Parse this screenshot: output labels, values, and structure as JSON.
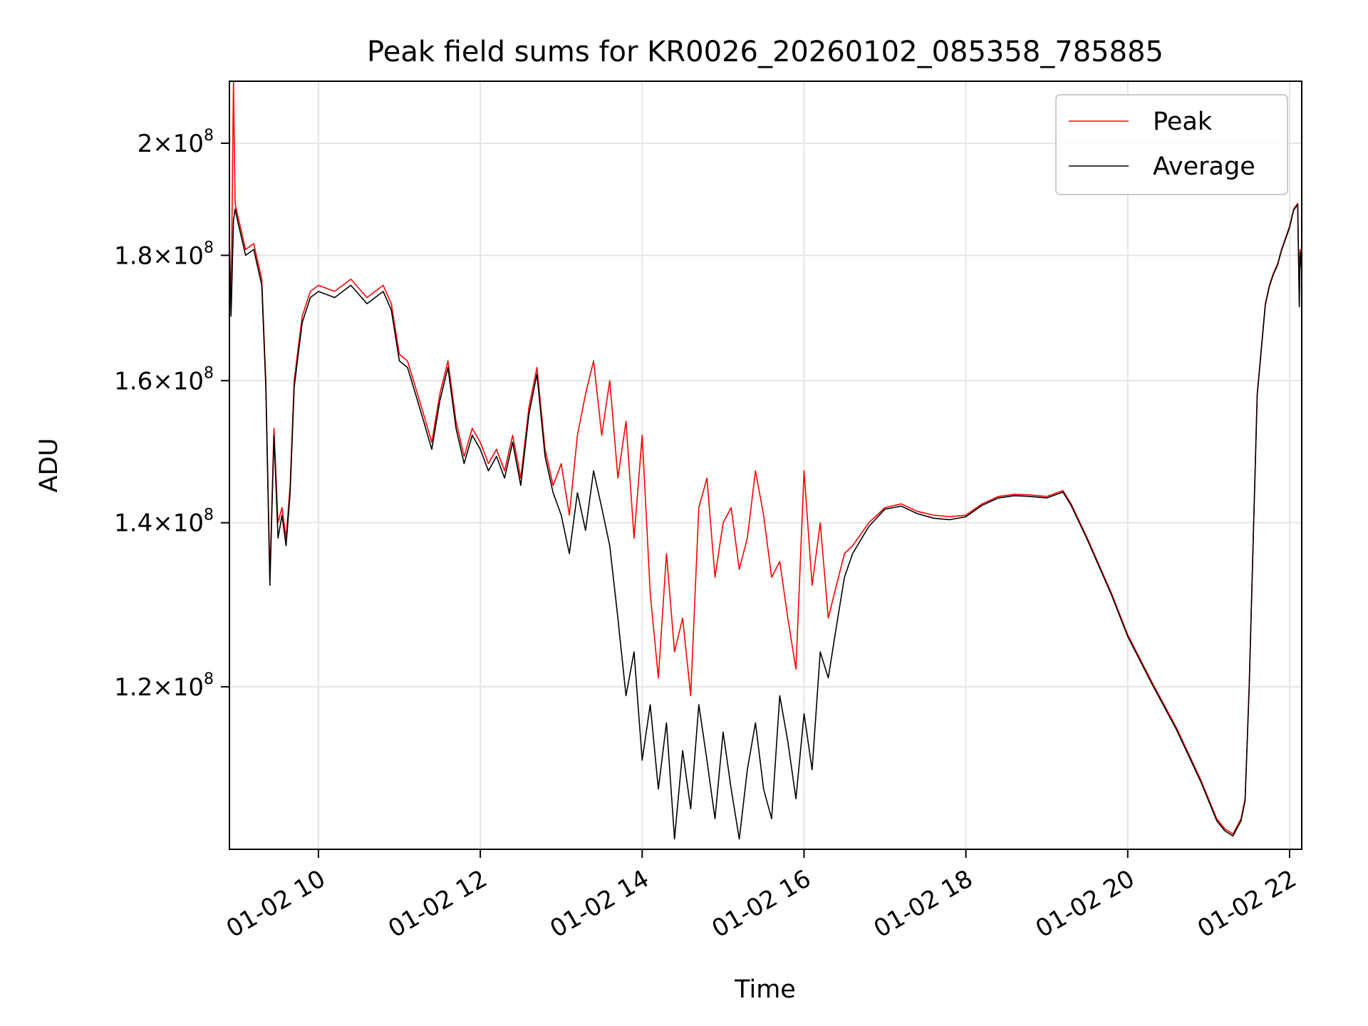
{
  "chart_data": {
    "type": "line",
    "title": "Peak field sums for KR0026_20260102_085358_785885",
    "xlabel": "Time",
    "ylabel": "ADU",
    "yscale": "log",
    "xlim": [
      8.9,
      22.15
    ],
    "ylim": [
      103000000,
      212000000
    ],
    "grid": true,
    "legend_position": "upper right",
    "x_ticks": [
      {
        "value": 10,
        "label": "01-02 10"
      },
      {
        "value": 12,
        "label": "01-02 12"
      },
      {
        "value": 14,
        "label": "01-02 14"
      },
      {
        "value": 16,
        "label": "01-02 16"
      },
      {
        "value": 18,
        "label": "01-02 18"
      },
      {
        "value": 20,
        "label": "01-02 20"
      },
      {
        "value": 22,
        "label": "01-02 22"
      }
    ],
    "y_ticks": [
      {
        "value": 120000000,
        "mant": "1.2",
        "exp": "8"
      },
      {
        "value": 140000000,
        "mant": "1.4",
        "exp": "8"
      },
      {
        "value": 160000000,
        "mant": "1.6",
        "exp": "8"
      },
      {
        "value": 180000000,
        "mant": "1.8",
        "exp": "8"
      },
      {
        "value": 200000000,
        "mant": "2",
        "exp": "8"
      }
    ],
    "series": [
      {
        "name": "Peak",
        "color": "#ff0000",
        "x": [
          8.9,
          8.92,
          8.95,
          8.97,
          9.0,
          9.05,
          9.1,
          9.2,
          9.3,
          9.35,
          9.4,
          9.45,
          9.5,
          9.55,
          9.6,
          9.65,
          9.7,
          9.75,
          9.8,
          9.9,
          10.0,
          10.2,
          10.4,
          10.6,
          10.8,
          10.9,
          11.0,
          11.1,
          11.2,
          11.3,
          11.4,
          11.5,
          11.6,
          11.7,
          11.8,
          11.9,
          12.0,
          12.1,
          12.2,
          12.3,
          12.4,
          12.5,
          12.6,
          12.7,
          12.8,
          12.9,
          13.0,
          13.1,
          13.2,
          13.3,
          13.4,
          13.5,
          13.6,
          13.7,
          13.8,
          13.9,
          14.0,
          14.1,
          14.2,
          14.3,
          14.4,
          14.5,
          14.6,
          14.7,
          14.8,
          14.9,
          15.0,
          15.1,
          15.2,
          15.3,
          15.4,
          15.5,
          15.6,
          15.7,
          15.8,
          15.9,
          16.0,
          16.1,
          16.2,
          16.3,
          16.4,
          16.5,
          16.6,
          16.8,
          17.0,
          17.2,
          17.4,
          17.6,
          17.8,
          18.0,
          18.2,
          18.4,
          18.6,
          18.8,
          19.0,
          19.2,
          19.3,
          19.5,
          19.8,
          20.0,
          20.3,
          20.6,
          20.9,
          21.1,
          21.2,
          21.3,
          21.4,
          21.45,
          21.5,
          21.6,
          21.7,
          21.75,
          21.8,
          21.85,
          21.9,
          22.0,
          22.05,
          22.1,
          22.12,
          22.13,
          22.15
        ],
        "y": [
          183000000,
          171000000,
          212000000,
          189000000,
          187000000,
          184000000,
          181000000,
          182000000,
          176000000,
          160000000,
          133000000,
          153000000,
          140000000,
          142000000,
          138000000,
          145000000,
          160000000,
          165000000,
          170000000,
          174000000,
          175000000,
          174000000,
          176000000,
          173000000,
          175000000,
          172000000,
          164000000,
          163000000,
          159000000,
          155000000,
          151000000,
          158000000,
          163000000,
          154000000,
          149000000,
          153000000,
          151000000,
          148000000,
          150000000,
          147000000,
          152000000,
          146000000,
          156000000,
          162000000,
          150000000,
          145000000,
          148000000,
          141000000,
          152000000,
          158000000,
          163000000,
          152000000,
          160000000,
          146000000,
          154000000,
          138000000,
          152000000,
          131000000,
          121000000,
          136000000,
          124000000,
          128000000,
          119000000,
          142000000,
          146000000,
          133000000,
          140000000,
          142000000,
          134000000,
          138000000,
          147000000,
          141000000,
          133000000,
          135000000,
          128000000,
          122000000,
          147000000,
          132000000,
          140000000,
          128000000,
          132000000,
          136000000,
          137000000,
          140000000,
          142000000,
          142500000,
          141500000,
          141000000,
          140800000,
          141000000,
          142500000,
          143500000,
          143800000,
          143700000,
          143500000,
          144300000,
          142500000,
          138000000,
          131000000,
          126000000,
          120500000,
          115500000,
          110000000,
          106000000,
          105000000,
          104500000,
          106000000,
          108000000,
          120000000,
          158000000,
          172000000,
          175000000,
          177000000,
          178500000,
          181000000,
          185000000,
          188000000,
          189000000,
          172000000,
          181000000,
          178000000
        ]
      },
      {
        "name": "Average",
        "color": "#000000",
        "x": [
          8.9,
          8.92,
          8.95,
          8.97,
          9.0,
          9.05,
          9.1,
          9.2,
          9.3,
          9.35,
          9.4,
          9.45,
          9.5,
          9.55,
          9.6,
          9.65,
          9.7,
          9.75,
          9.8,
          9.9,
          10.0,
          10.2,
          10.4,
          10.6,
          10.8,
          10.9,
          11.0,
          11.1,
          11.2,
          11.3,
          11.4,
          11.5,
          11.6,
          11.7,
          11.8,
          11.9,
          12.0,
          12.1,
          12.2,
          12.3,
          12.4,
          12.5,
          12.6,
          12.7,
          12.8,
          12.9,
          13.0,
          13.1,
          13.2,
          13.3,
          13.4,
          13.5,
          13.6,
          13.7,
          13.8,
          13.9,
          14.0,
          14.1,
          14.2,
          14.3,
          14.4,
          14.5,
          14.6,
          14.7,
          14.8,
          14.9,
          15.0,
          15.1,
          15.2,
          15.3,
          15.4,
          15.5,
          15.6,
          15.7,
          15.8,
          15.9,
          16.0,
          16.1,
          16.2,
          16.3,
          16.4,
          16.5,
          16.6,
          16.8,
          17.0,
          17.2,
          17.4,
          17.6,
          17.8,
          18.0,
          18.2,
          18.4,
          18.6,
          18.8,
          19.0,
          19.2,
          19.3,
          19.5,
          19.8,
          20.0,
          20.3,
          20.6,
          20.9,
          21.1,
          21.2,
          21.3,
          21.4,
          21.45,
          21.5,
          21.6,
          21.7,
          21.75,
          21.8,
          21.85,
          21.9,
          22.0,
          22.05,
          22.1,
          22.12,
          22.13,
          22.15
        ],
        "y": [
          182000000,
          170000000,
          186000000,
          188000000,
          186000000,
          183000000,
          180000000,
          181000000,
          175000000,
          159000000,
          132000000,
          152000000,
          138000000,
          141000000,
          137000000,
          144000000,
          159000000,
          164000000,
          169000000,
          173000000,
          174000000,
          173000000,
          175000000,
          172000000,
          174000000,
          171000000,
          163000000,
          162000000,
          158000000,
          154000000,
          150000000,
          157000000,
          162000000,
          153000000,
          148000000,
          152000000,
          150000000,
          147000000,
          149000000,
          146000000,
          151000000,
          145000000,
          155000000,
          161000000,
          149000000,
          144000000,
          141000000,
          136000000,
          144000000,
          139000000,
          147000000,
          142000000,
          137000000,
          128000000,
          119000000,
          124000000,
          112000000,
          118000000,
          109000000,
          116000000,
          104000000,
          113000000,
          107000000,
          118000000,
          112000000,
          106000000,
          115000000,
          109000000,
          104000000,
          111000000,
          116000000,
          109000000,
          106000000,
          119000000,
          114000000,
          108000000,
          117000000,
          111000000,
          124000000,
          121000000,
          127000000,
          133000000,
          136000000,
          139500000,
          141800000,
          142200000,
          141200000,
          140600000,
          140400000,
          140800000,
          142300000,
          143300000,
          143600000,
          143500000,
          143300000,
          144100000,
          142300000,
          137800000,
          130800000,
          125800000,
          120300000,
          115300000,
          109800000,
          105800000,
          104800000,
          104300000,
          105800000,
          107800000,
          119800000,
          157800000,
          171800000,
          174800000,
          176800000,
          178300000,
          180800000,
          184800000,
          187800000,
          188800000,
          171500000,
          180500000,
          177500000
        ]
      }
    ]
  }
}
